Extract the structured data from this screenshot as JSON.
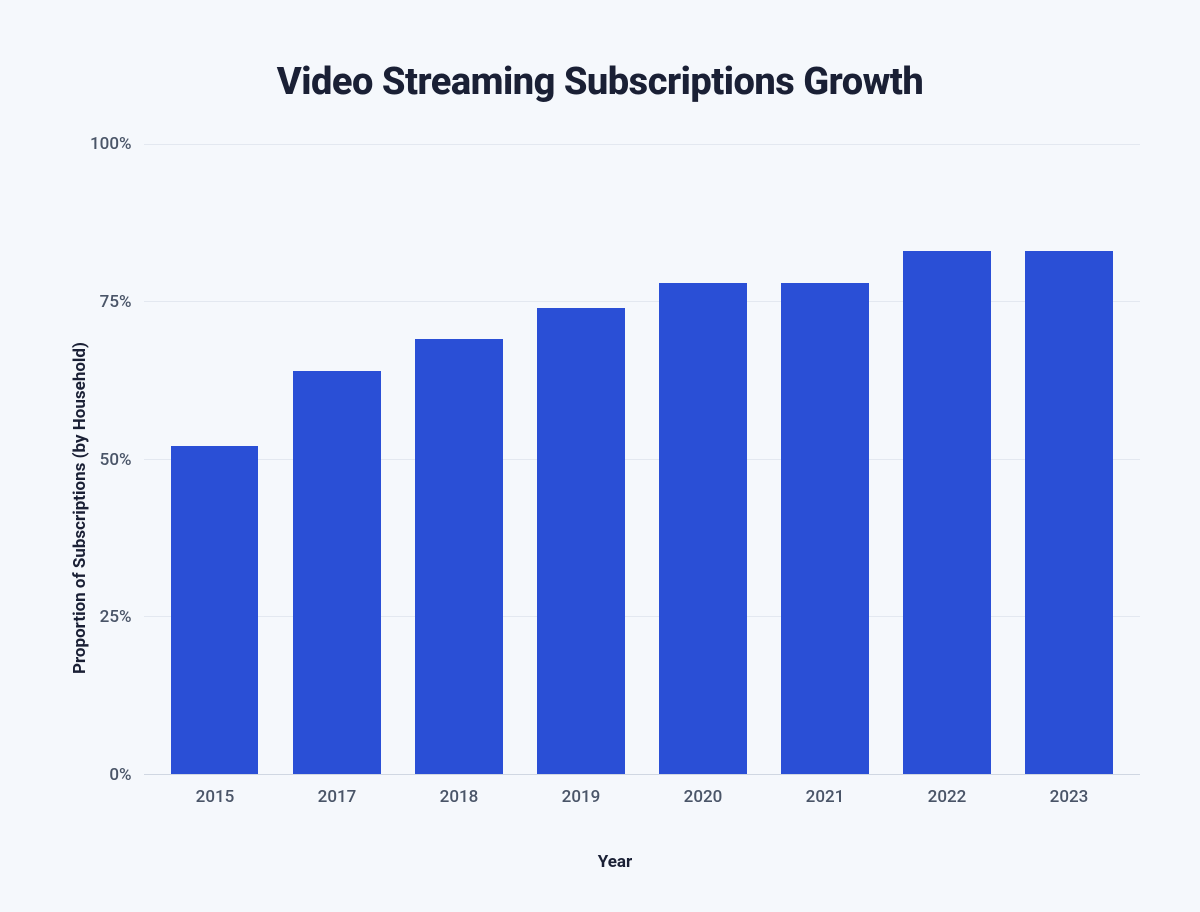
{
  "chart": {
    "type": "bar",
    "title": "Video Streaming Subscriptions Growth",
    "title_fontsize": 38,
    "title_color": "#1a2035",
    "ylabel": "Proportion of Subscriptions (by Household)",
    "xlabel": "Year",
    "axis_label_fontsize": 17,
    "axis_label_color": "#1a2035",
    "categories": [
      "2015",
      "2017",
      "2018",
      "2019",
      "2020",
      "2021",
      "2022",
      "2023"
    ],
    "values": [
      52,
      64,
      69,
      74,
      78,
      78,
      83,
      83
    ],
    "ylim": [
      0,
      100
    ],
    "yticks": [
      100,
      75,
      50,
      25,
      0
    ],
    "ytick_labels": [
      "100%",
      "75%",
      "50%",
      "25%",
      "0%"
    ],
    "tick_fontsize": 17,
    "tick_color": "#4a5568",
    "bar_color": "#2a4fd6",
    "bar_width": 0.72,
    "background_color": "#f5f8fc",
    "grid_color": "#e3e8f0",
    "axis_line_color": "#d0d7e2"
  }
}
